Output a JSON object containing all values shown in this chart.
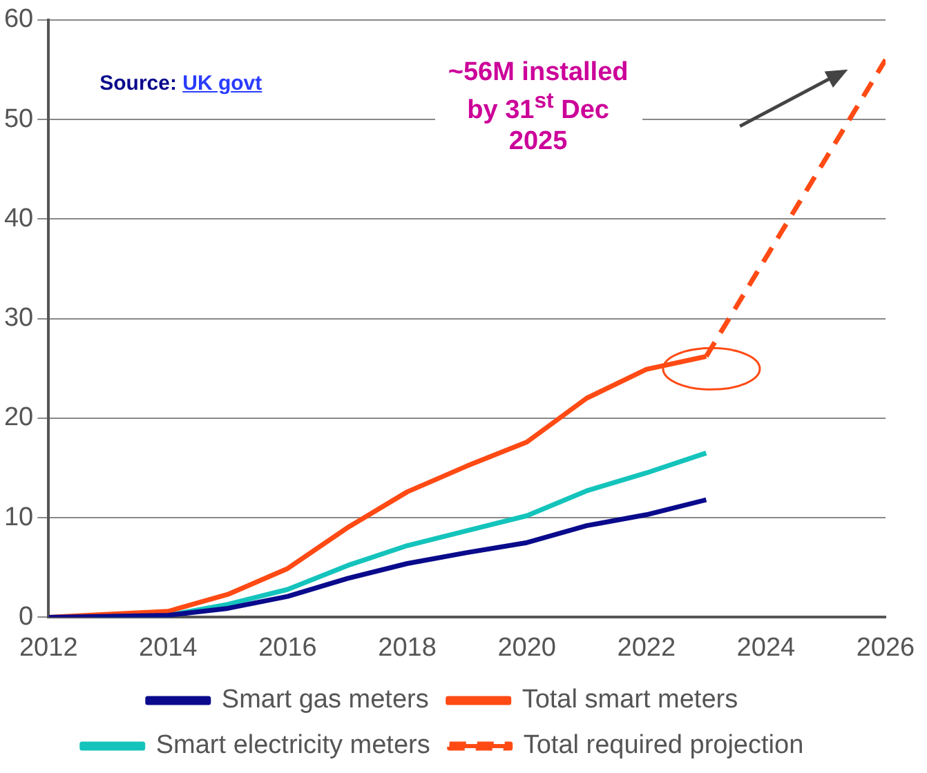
{
  "chart_data": {
    "type": "line",
    "x": [
      2012,
      2013,
      2014,
      2015,
      2016,
      2017,
      2018,
      2019,
      2020,
      2021,
      2022,
      2023
    ],
    "series": [
      {
        "name": "Smart gas meters",
        "color": "#0a0a8c",
        "values": [
          0,
          0.1,
          0.2,
          0.9,
          2.1,
          3.9,
          5.4,
          6.5,
          7.5,
          9.2,
          10.3,
          11.8
        ]
      },
      {
        "name": "Total smart meters",
        "color": "#ff4a14",
        "values": [
          0,
          0.3,
          0.6,
          2.3,
          4.9,
          9,
          12.6,
          15.2,
          17.6,
          22,
          24.9,
          26.2
        ]
      },
      {
        "name": "Smart electricity meters",
        "color": "#14c4bc",
        "values": [
          0,
          0.1,
          0.2,
          1.3,
          2.8,
          5.2,
          7.2,
          8.7,
          10.2,
          12.7,
          14.5,
          16.5
        ]
      },
      {
        "name": "Total required projection",
        "color": "#ff4a14",
        "line_style": "dashed",
        "x": [
          2023,
          2026
        ],
        "values": [
          26.2,
          56
        ]
      }
    ],
    "xlim": [
      2012,
      2026
    ],
    "xticks": [
      2012,
      2014,
      2016,
      2018,
      2020,
      2022,
      2024,
      2026
    ],
    "ylim": [
      0,
      60
    ],
    "yticks": [
      0,
      10,
      20,
      30,
      40,
      50,
      60
    ],
    "grid": "y",
    "legend": "bottom",
    "marker": "none",
    "line_style": "solid",
    "annotations": [
      "Source: UK govt",
      "~56M installed by 31$^{st}$ Dec 2025"
    ]
  }
}
